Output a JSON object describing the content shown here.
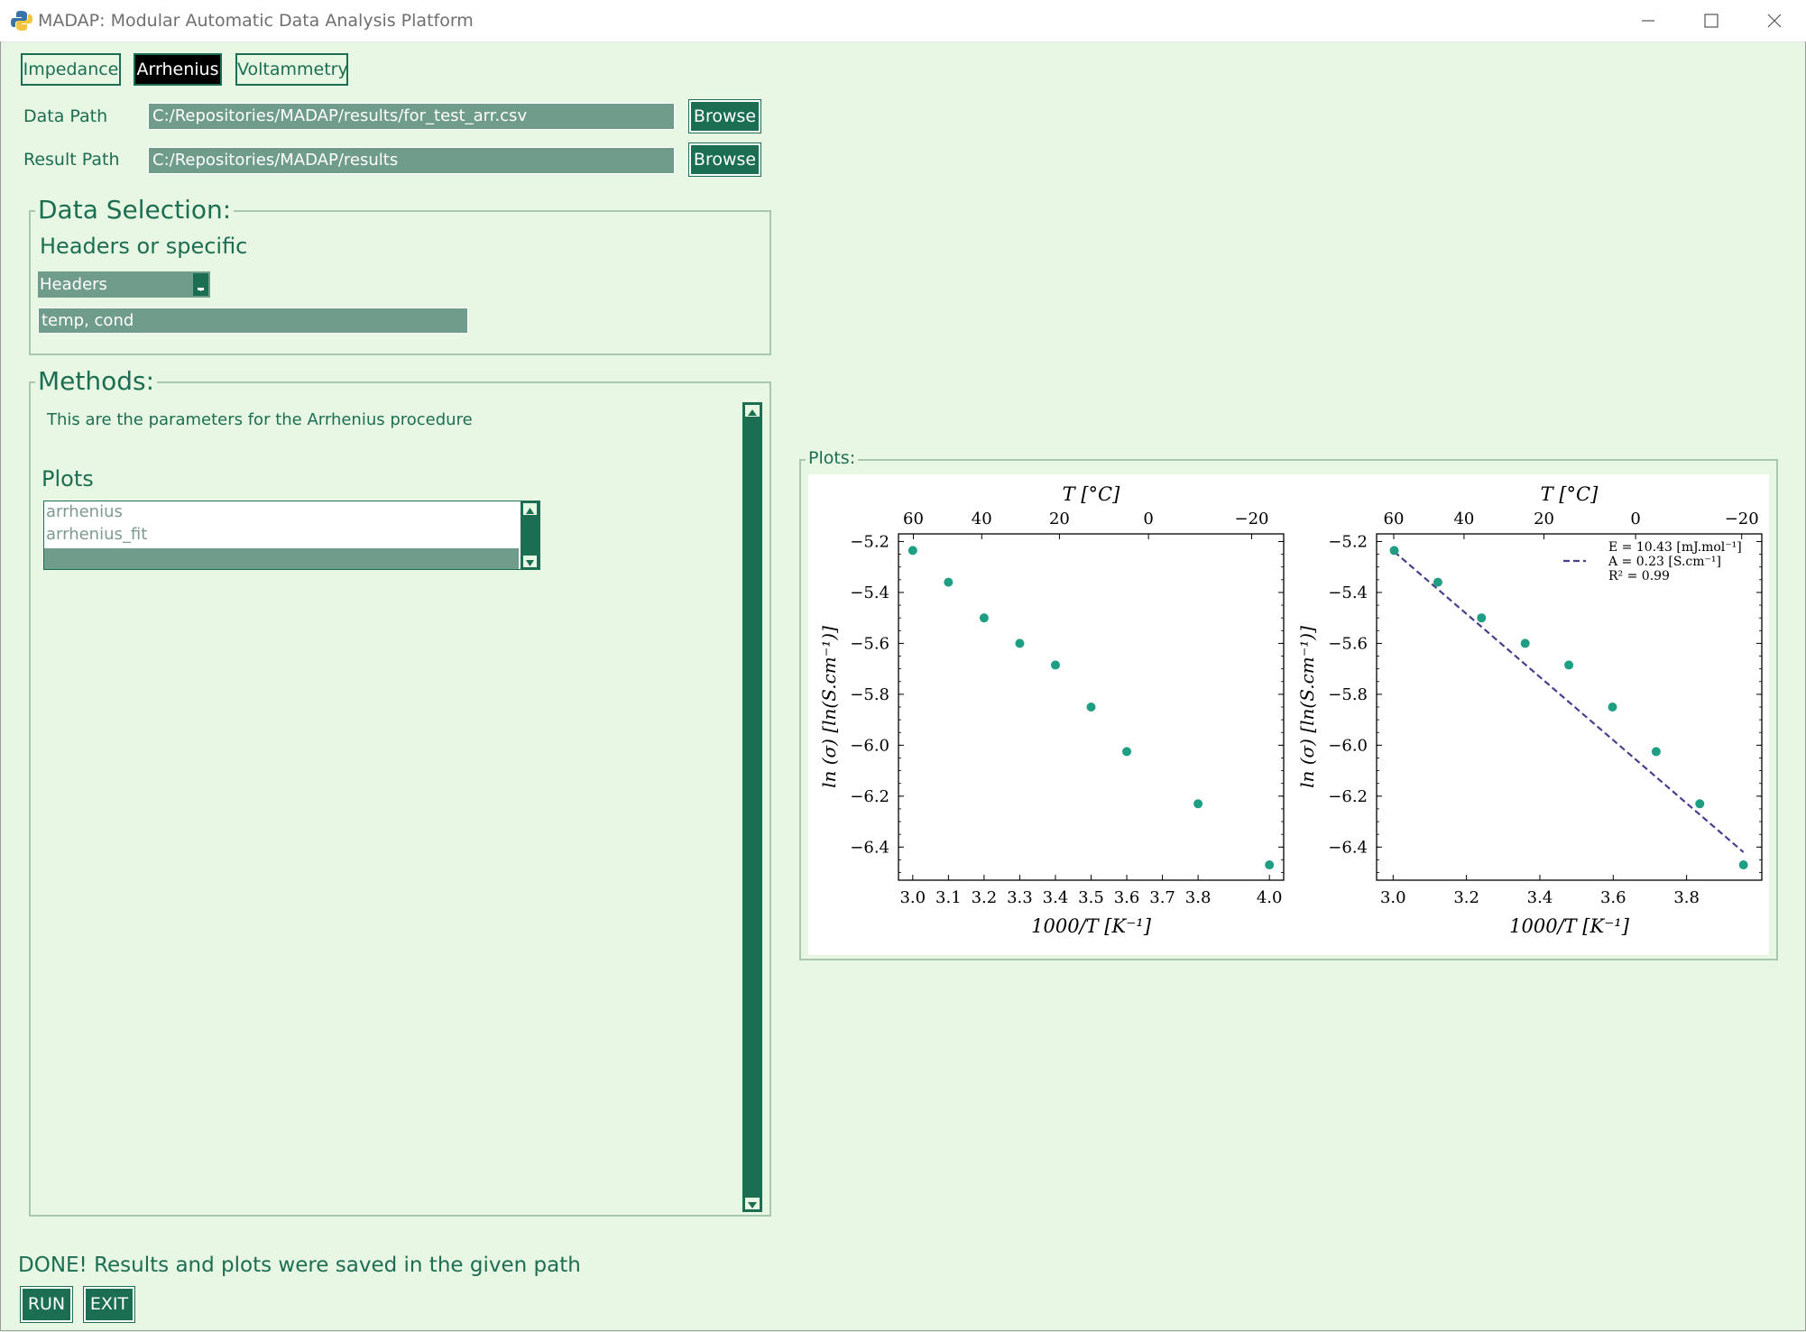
{
  "window": {
    "title": "MADAP: Modular Automatic Data Analysis Platform",
    "app_icon": "python-icon",
    "controls": [
      "minimize-icon",
      "maximize-icon",
      "close-icon"
    ]
  },
  "tabs": [
    {
      "label": "Impedance",
      "active": false
    },
    {
      "label": "Arrhenius",
      "active": true
    },
    {
      "label": "Voltammetry",
      "active": false
    }
  ],
  "data_path": {
    "label": "Data Path",
    "value": "C:/Repositories/MADAP/results/for_test_arr.csv",
    "button": "Browse"
  },
  "result_path": {
    "label": "Result Path",
    "value": "C:/Repositories/MADAP/results",
    "button": "Browse"
  },
  "data_selection": {
    "title": "Data Selection:",
    "subtitle": "Headers or specific",
    "mode": "Headers",
    "columns": "temp, cond"
  },
  "methods": {
    "title": "Methods:",
    "description": "This are the parameters for the Arrhenius procedure",
    "plots_label": "Plots",
    "plots_options": [
      "arrhenius",
      "arrhenius_fit"
    ]
  },
  "plots_frame": {
    "title": "Plots:"
  },
  "status": "DONE! Results and plots were saved in the given path",
  "actions": {
    "run": "RUN",
    "exit": "EXIT"
  },
  "colors": {
    "background": "#e7f7e4",
    "primary": "#1c6e52",
    "field": "#709c8c",
    "marker": "#1f9e83",
    "fit_line": "#4b3f8c"
  },
  "chart_data": [
    {
      "type": "scatter",
      "xlabel": "1000/T [K⁻¹]",
      "ylabel": "ln (σ) [ln(S.cm⁻¹)]",
      "top_xlabel": "T [°C]",
      "x_ticks": [
        "3.0",
        "3.1",
        "3.2",
        "3.3",
        "3.4",
        "3.5",
        "3.6",
        "3.7",
        "3.8",
        "4.0"
      ],
      "top_ticks": [
        "60",
        "40",
        "20",
        "0",
        "−20"
      ],
      "y_ticks": [
        "−5.2",
        "−5.4",
        "−5.6",
        "−5.8",
        "−6.0",
        "−6.2",
        "−6.4"
      ],
      "xlim": [
        2.96,
        4.04
      ],
      "ylim": [
        -6.53,
        -5.17
      ],
      "points": [
        {
          "x": 3.0,
          "y": -5.235
        },
        {
          "x": 3.1,
          "y": -5.36
        },
        {
          "x": 3.2,
          "y": -5.5
        },
        {
          "x": 3.3,
          "y": -5.6
        },
        {
          "x": 3.4,
          "y": -5.685
        },
        {
          "x": 3.5,
          "y": -5.85
        },
        {
          "x": 3.6,
          "y": -6.025
        },
        {
          "x": 3.8,
          "y": -6.23
        },
        {
          "x": 4.0,
          "y": -6.47
        }
      ]
    },
    {
      "type": "scatter",
      "xlabel": "1000/T [K⁻¹]",
      "ylabel": "ln (σ) [ln(S.cm⁻¹)]",
      "top_xlabel": "T [°C]",
      "x_ticks": [
        "3.0",
        "3.2",
        "3.4",
        "3.6",
        "3.8"
      ],
      "top_ticks": [
        "60",
        "40",
        "20",
        "0",
        "−20"
      ],
      "y_ticks": [
        "−5.2",
        "−5.4",
        "−5.6",
        "−5.8",
        "−6.0",
        "−6.2",
        "−6.4"
      ],
      "xlim": [
        2.955,
        4.005
      ],
      "ylim": [
        -6.53,
        -5.17
      ],
      "points": [
        {
          "x": 3.003,
          "y": -5.235
        },
        {
          "x": 3.122,
          "y": -5.36
        },
        {
          "x": 3.241,
          "y": -5.5
        },
        {
          "x": 3.36,
          "y": -5.6
        },
        {
          "x": 3.479,
          "y": -5.685
        },
        {
          "x": 3.598,
          "y": -5.85
        },
        {
          "x": 3.717,
          "y": -6.025
        },
        {
          "x": 3.836,
          "y": -6.23
        },
        {
          "x": 3.955,
          "y": -6.47
        }
      ],
      "fit": {
        "x": [
          3.003,
          3.955
        ],
        "y": [
          -5.24,
          -6.42
        ]
      },
      "legend": [
        "E  = 10.43 [mJ.mol⁻¹]",
        "A  = 0.23 [S.cm⁻¹]",
        "R² = 0.99"
      ]
    }
  ]
}
